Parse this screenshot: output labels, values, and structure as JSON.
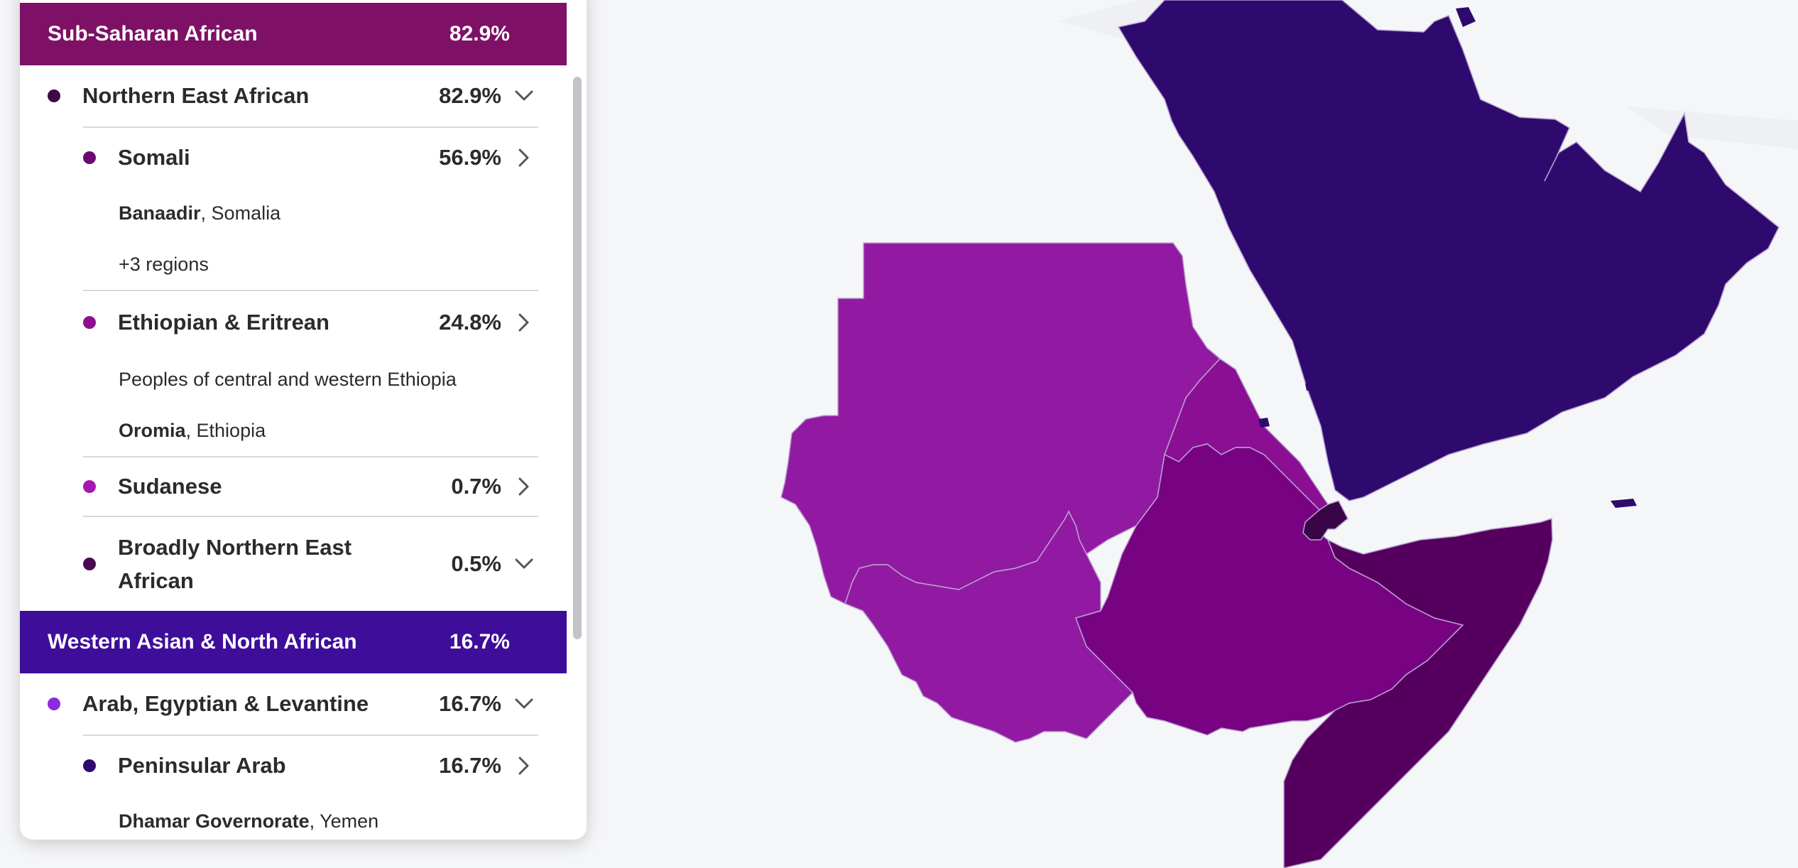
{
  "panel": {
    "sections": [
      {
        "title": "Sub-Saharan African",
        "pct": "82.9%",
        "color": "#7e1166",
        "groups": [
          {
            "name": "Northern East African",
            "pct": "82.9%",
            "dot_color": "#3d0848",
            "icon": "chevron-down-icon",
            "items": [
              {
                "name": "Somali",
                "pct": "56.9%",
                "dot_color": "#6a0a6f",
                "icon": "chevron-right-icon",
                "region_bold": "Banaadir",
                "region_rest": ", Somalia",
                "more": "+3 regions"
              },
              {
                "name": "Ethiopian & Eritrean",
                "pct": "24.8%",
                "dot_color": "#8e0f91",
                "icon": "chevron-right-icon",
                "note": "Peoples of central and western Ethiopia",
                "region_bold": "Oromia",
                "region_rest": ", Ethiopia"
              },
              {
                "name": "Sudanese",
                "pct": "0.7%",
                "dot_color": "#a718ae",
                "icon": "chevron-right-icon"
              },
              {
                "name_line1": "Broadly Northern East",
                "name_line2": "African",
                "pct": "0.5%",
                "dot_color": "#4a0a50",
                "icon": "chevron-down-icon"
              }
            ]
          }
        ]
      },
      {
        "title": "Western Asian & North African",
        "pct": "16.7%",
        "color": "#3e0d9a",
        "groups": [
          {
            "name": "Arab, Egyptian & Levantine",
            "pct": "16.7%",
            "dot_color": "#8a2be2",
            "icon": "chevron-down-icon",
            "items": [
              {
                "name": "Peninsular Arab",
                "pct": "16.7%",
                "dot_color": "#2d0a6e",
                "icon": "chevron-right-icon",
                "region_bold": "Dhamar Governorate",
                "region_rest": ", Yemen"
              }
            ]
          }
        ]
      }
    ]
  },
  "map": {
    "colors": {
      "background": "#f5f6f8",
      "peninsular_arab": "#2f0a6e",
      "sudan": "#921aa2",
      "ethiopia": "#770383",
      "eritrea": "#8b0f93",
      "somalia": "#55005e",
      "djibouti": "#3a0546",
      "border": "#b9a3d0"
    }
  }
}
